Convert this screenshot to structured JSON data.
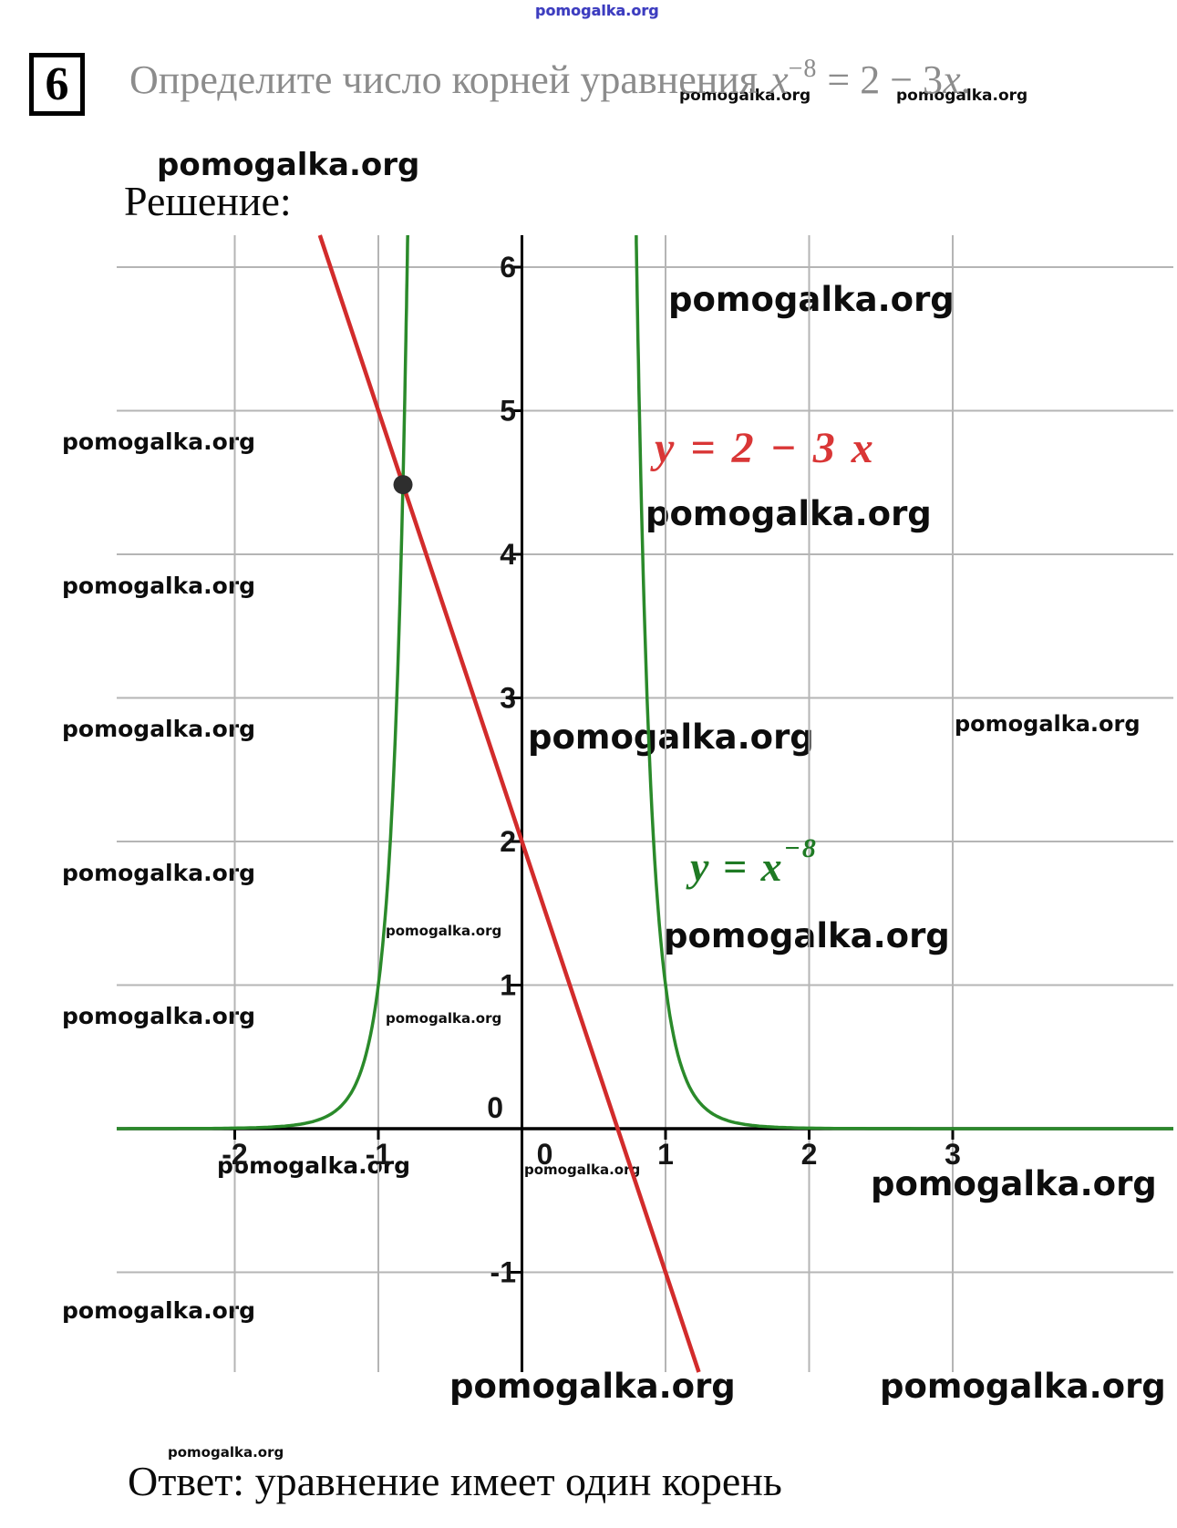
{
  "brand": "pomogalka.org",
  "header": {
    "problem_number": "6",
    "title_text": "Определите число корней уравнения",
    "equation": {
      "base": "x",
      "sup": "−8",
      "mid": " = 2 − 3",
      "var": "x",
      "end": "."
    }
  },
  "solution_label": "Решение:",
  "answer": "Ответ: уравнение имеет один корень",
  "chart_data": {
    "type": "line",
    "title": "",
    "xlabel": "",
    "ylabel": "",
    "xlim": [
      -2.82,
      4.54
    ],
    "ylim": [
      -1.7,
      6.22
    ],
    "x_ticks": [
      -2,
      -1,
      0,
      1,
      2,
      3
    ],
    "y_ticks": [
      -1,
      0,
      1,
      2,
      3,
      4,
      5,
      6
    ],
    "grid": true,
    "grid_color": "#b5b5b5",
    "axis_color": "#000000",
    "tick_label_color": "#151515",
    "series": [
      {
        "name": "y = 2 − 3 x",
        "type": "linear",
        "slope": -3,
        "intercept": 2,
        "color": "#d22b2b",
        "label_color": "#d93636"
      },
      {
        "name": "y = x⁻⁸",
        "type": "power",
        "exponent": -8,
        "color": "#2a8a2a",
        "label_base": "y = x",
        "label_sup": "−8",
        "label_color": "#1f7a24"
      }
    ],
    "intersection": {
      "x": -0.8284,
      "y": 4.4852,
      "color": "#2e2e2e"
    },
    "legend_position": "inside-plot"
  }
}
